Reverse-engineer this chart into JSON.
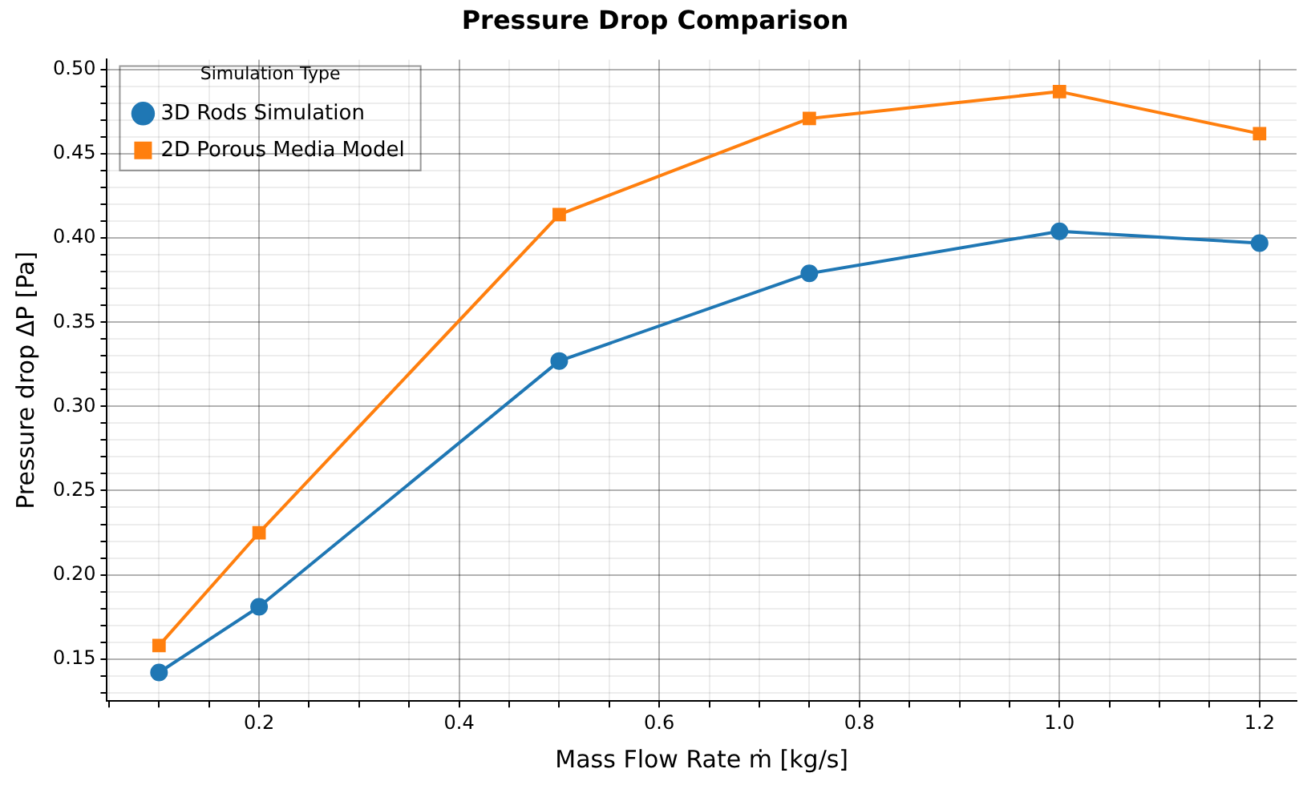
{
  "chart_data": {
    "type": "line",
    "title": "Pressure Drop Comparison",
    "xlabel": "Mass Flow Rate ṁ [kg/s]",
    "ylabel": "Pressure drop ΔP [Pa]",
    "legend_title": "Simulation Type",
    "legend": "top left",
    "grid": true,
    "x": [
      0.1,
      0.2,
      0.5,
      0.75,
      1.0,
      1.2
    ],
    "xlim": [
      0.048,
      1.237
    ],
    "ylim": [
      0.125,
      0.506
    ],
    "xticks": [
      0.2,
      0.4,
      0.6,
      0.8,
      {
        "value": 1,
        "label": "1.0"
      },
      1.2,
      {
        "value": 0.05,
        "label": null
      },
      {
        "value": 0.1,
        "label": null
      },
      {
        "value": 0.15,
        "label": null
      },
      {
        "value": 0.25,
        "label": null
      },
      {
        "value": 0.3,
        "label": null
      },
      {
        "value": 0.35,
        "label": null
      },
      {
        "value": 0.45,
        "label": null
      },
      {
        "value": 0.5,
        "label": null
      },
      {
        "value": 0.55,
        "label": null
      },
      {
        "value": 0.65,
        "label": null
      },
      {
        "value": 0.7,
        "label": null
      },
      {
        "value": 0.75,
        "label": null
      },
      {
        "value": 0.85,
        "label": null
      },
      {
        "value": 0.9,
        "label": null
      },
      {
        "value": 0.95,
        "label": null
      },
      {
        "value": 1.05,
        "label": null
      },
      {
        "value": 1.1,
        "label": null
      },
      {
        "value": 1.15,
        "label": null
      }
    ],
    "yticks": [
      0.15,
      {
        "value": 0.2,
        "label": "0.20"
      },
      0.25,
      {
        "value": 0.3,
        "label": "0.30"
      },
      0.35,
      {
        "value": 0.4,
        "label": "0.40"
      },
      0.45,
      {
        "value": 0.5,
        "label": "0.50"
      },
      {
        "value": 0.13,
        "label": null
      },
      {
        "value": 0.14,
        "label": null
      },
      {
        "value": 0.16,
        "label": null
      },
      {
        "value": 0.17,
        "label": null
      },
      {
        "value": 0.18,
        "label": null
      },
      {
        "value": 0.19,
        "label": null
      },
      {
        "value": 0.21,
        "label": null
      },
      {
        "value": 0.22,
        "label": null
      },
      {
        "value": 0.23,
        "label": null
      },
      {
        "value": 0.24,
        "label": null
      },
      {
        "value": 0.26,
        "label": null
      },
      {
        "value": 0.27,
        "label": null
      },
      {
        "value": 0.28,
        "label": null
      },
      {
        "value": 0.29,
        "label": null
      },
      {
        "value": 0.31,
        "label": null
      },
      {
        "value": 0.32,
        "label": null
      },
      {
        "value": 0.33,
        "label": null
      },
      {
        "value": 0.34,
        "label": null
      },
      {
        "value": 0.36,
        "label": null
      },
      {
        "value": 0.37,
        "label": null
      },
      {
        "value": 0.38,
        "label": null
      },
      {
        "value": 0.39,
        "label": null
      },
      {
        "value": 0.41,
        "label": null
      },
      {
        "value": 0.42,
        "label": null
      },
      {
        "value": 0.43,
        "label": null
      },
      {
        "value": 0.44,
        "label": null
      },
      {
        "value": 0.46,
        "label": null
      },
      {
        "value": 0.47,
        "label": null
      },
      {
        "value": 0.48,
        "label": null
      },
      {
        "value": 0.49,
        "label": null
      }
    ],
    "series": [
      {
        "name": "3D Rods Simulation",
        "color": "#1f77b4",
        "marker": "circle",
        "values": [
          0.142,
          0.181,
          0.327,
          0.379,
          0.404,
          0.397
        ]
      },
      {
        "name": "2D Porous Media Model",
        "color": "#ff7f0e",
        "marker": "square",
        "values": [
          0.158,
          0.225,
          0.414,
          0.471,
          0.487,
          0.462
        ]
      }
    ]
  }
}
